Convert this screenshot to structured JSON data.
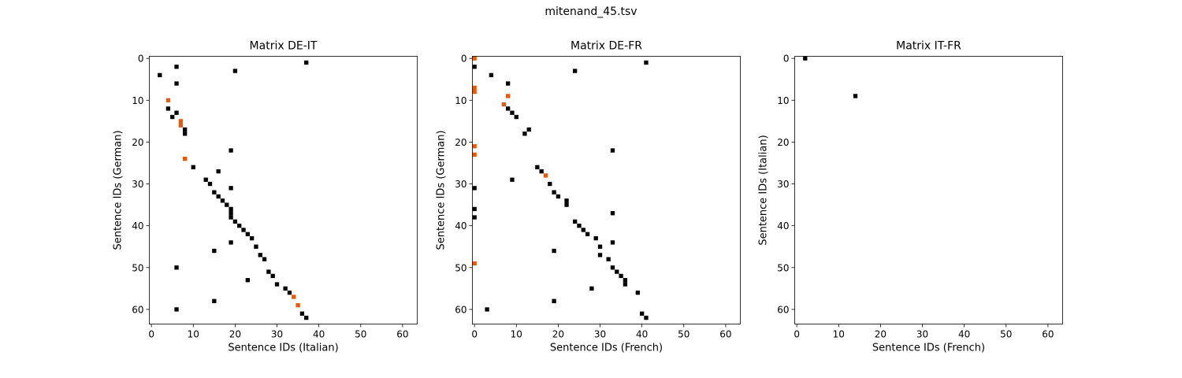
{
  "figure": {
    "suptitle": "mitenand_45.tsv"
  },
  "chart_data": [
    {
      "type": "heatmap",
      "title": "Matrix DE-IT",
      "xlabel": "Sentence IDs (Italian)",
      "ylabel": "Sentence IDs (German)",
      "xlim": [
        -0.5,
        63.5
      ],
      "ylim": [
        63.5,
        -0.5
      ],
      "xticks": [
        0,
        10,
        20,
        30,
        40,
        50,
        60
      ],
      "yticks": [
        0,
        10,
        20,
        30,
        40,
        50,
        60
      ],
      "colors": {
        "black": "#000000",
        "orange": "#e8590c"
      },
      "cells_black": [
        [
          37,
          1
        ],
        [
          6,
          2
        ],
        [
          20,
          3
        ],
        [
          2,
          4
        ],
        [
          6,
          6
        ],
        [
          4,
          12
        ],
        [
          6,
          13
        ],
        [
          5,
          14
        ],
        [
          8,
          17
        ],
        [
          8,
          18
        ],
        [
          19,
          22
        ],
        [
          10,
          26
        ],
        [
          16,
          27
        ],
        [
          13,
          29
        ],
        [
          14,
          30
        ],
        [
          19,
          31
        ],
        [
          15,
          32
        ],
        [
          16,
          33
        ],
        [
          17,
          34
        ],
        [
          18,
          35
        ],
        [
          19,
          36
        ],
        [
          19,
          37
        ],
        [
          19,
          38
        ],
        [
          20,
          39
        ],
        [
          21,
          40
        ],
        [
          22,
          41
        ],
        [
          23,
          42
        ],
        [
          24,
          43
        ],
        [
          19,
          44
        ],
        [
          25,
          45
        ],
        [
          15,
          46
        ],
        [
          26,
          47
        ],
        [
          27,
          48
        ],
        [
          6,
          50
        ],
        [
          28,
          51
        ],
        [
          29,
          52
        ],
        [
          23,
          53
        ],
        [
          30,
          54
        ],
        [
          32,
          55
        ],
        [
          33,
          56
        ],
        [
          15,
          58
        ],
        [
          6,
          60
        ],
        [
          36,
          61
        ],
        [
          37,
          62
        ]
      ],
      "cells_orange": [
        [
          4,
          10
        ],
        [
          7,
          15
        ],
        [
          7,
          16
        ],
        [
          8,
          24
        ],
        [
          34,
          57
        ],
        [
          35,
          59
        ]
      ]
    },
    {
      "type": "heatmap",
      "title": "Matrix DE-FR",
      "xlabel": "Sentence IDs (French)",
      "ylabel": "Sentence IDs (German)",
      "xlim": [
        -0.5,
        63.5
      ],
      "ylim": [
        63.5,
        -0.5
      ],
      "xticks": [
        0,
        10,
        20,
        30,
        40,
        50,
        60
      ],
      "yticks": [
        0,
        10,
        20,
        30,
        40,
        50,
        60
      ],
      "colors": {
        "black": "#000000",
        "orange": "#e8590c"
      },
      "cells_black": [
        [
          41,
          1
        ],
        [
          0,
          2
        ],
        [
          24,
          3
        ],
        [
          4,
          4
        ],
        [
          8,
          6
        ],
        [
          8,
          12
        ],
        [
          9,
          13
        ],
        [
          10,
          14
        ],
        [
          13,
          17
        ],
        [
          12,
          18
        ],
        [
          33,
          22
        ],
        [
          15,
          26
        ],
        [
          16,
          27
        ],
        [
          9,
          29
        ],
        [
          18,
          30
        ],
        [
          0,
          31
        ],
        [
          19,
          32
        ],
        [
          20,
          33
        ],
        [
          22,
          34
        ],
        [
          22,
          35
        ],
        [
          0,
          36
        ],
        [
          33,
          37
        ],
        [
          0,
          38
        ],
        [
          24,
          39
        ],
        [
          25,
          40
        ],
        [
          26,
          41
        ],
        [
          27,
          42
        ],
        [
          29,
          43
        ],
        [
          33,
          44
        ],
        [
          30,
          45
        ],
        [
          19,
          46
        ],
        [
          30,
          47
        ],
        [
          32,
          48
        ],
        [
          33,
          50
        ],
        [
          34,
          51
        ],
        [
          35,
          52
        ],
        [
          36,
          53
        ],
        [
          36,
          54
        ],
        [
          28,
          55
        ],
        [
          39,
          56
        ],
        [
          19,
          58
        ],
        [
          3,
          60
        ],
        [
          40,
          61
        ],
        [
          41,
          62
        ]
      ],
      "cells_orange": [
        [
          0,
          0
        ],
        [
          0,
          7
        ],
        [
          0,
          8
        ],
        [
          8,
          9
        ],
        [
          7,
          11
        ],
        [
          0,
          21
        ],
        [
          0,
          23
        ],
        [
          17,
          28
        ],
        [
          0,
          49
        ]
      ]
    },
    {
      "type": "heatmap",
      "title": "Matrix IT-FR",
      "xlabel": "Sentence IDs (French)",
      "ylabel": "Sentence IDs (Italian)",
      "xlim": [
        -0.5,
        63.5
      ],
      "ylim": [
        63.5,
        -0.5
      ],
      "xticks": [
        0,
        10,
        20,
        30,
        40,
        50,
        60
      ],
      "yticks": [
        0,
        10,
        20,
        30,
        40,
        50,
        60
      ],
      "colors": {
        "black": "#000000",
        "orange": "#e8590c"
      },
      "cells_black": [
        [
          2,
          0
        ],
        [
          14,
          9
        ]
      ],
      "cells_orange": []
    }
  ]
}
